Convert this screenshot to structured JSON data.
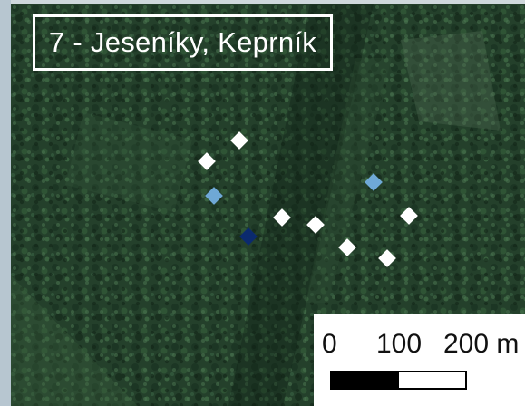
{
  "title": "7 - Jeseníky, Keprník",
  "scale": {
    "labels": [
      "0",
      "100",
      "200 m"
    ]
  },
  "markers": {
    "colors": {
      "white": "#ffffff",
      "light_blue": "#6fa8d6",
      "dark_blue": "#0b2a6e"
    }
  }
}
